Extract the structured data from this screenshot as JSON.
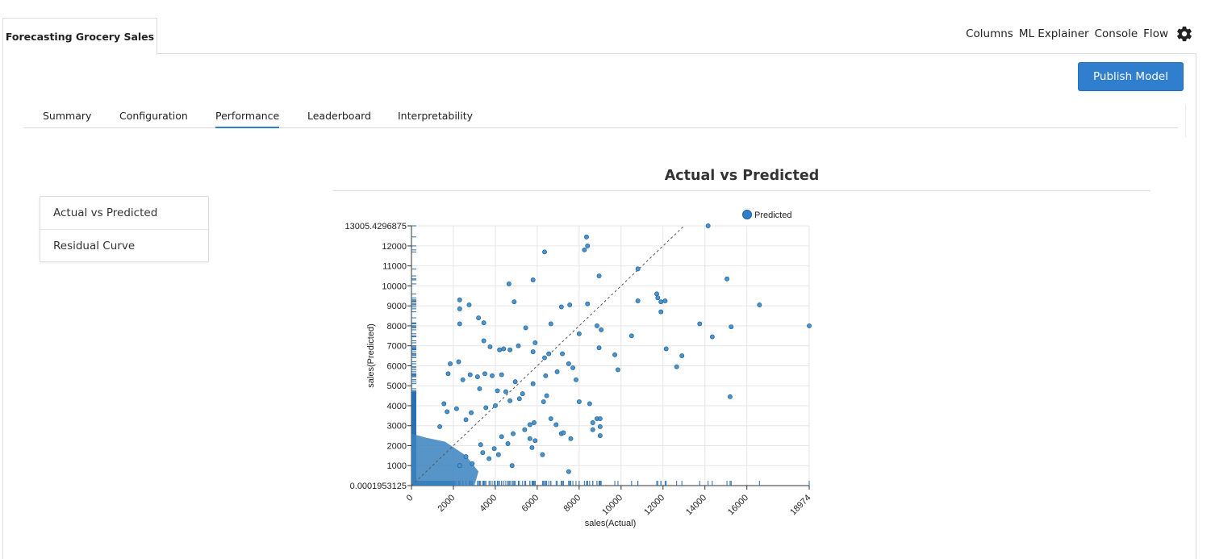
{
  "app": {
    "project_tab": "Forecasting Grocery Sales",
    "top_links": [
      "Columns",
      "ML Explainer",
      "Console",
      "Flow"
    ],
    "settings_icon": "gear-icon",
    "publish_label": "Publish Model",
    "accent_color": "#2f7fce"
  },
  "subtabs": [
    {
      "label": "Summary",
      "active": false
    },
    {
      "label": "Configuration",
      "active": false
    },
    {
      "label": "Performance",
      "active": true
    },
    {
      "label": "Leaderboard",
      "active": false
    },
    {
      "label": "Interpretability",
      "active": false
    }
  ],
  "side_menu": [
    "Actual vs Predicted",
    "Residual Curve"
  ],
  "chart_data": {
    "type": "scatter",
    "title": "Actual vs Predicted",
    "xlabel": "sales(Actual)",
    "ylabel": "sales(Predicted)",
    "xlim": [
      0,
      18974
    ],
    "ylim": [
      0.0001953125,
      13005.4296875
    ],
    "x_ticks": [
      "0",
      "2000",
      "4000",
      "6000",
      "8000",
      "10000",
      "12000",
      "14000",
      "16000",
      "18974"
    ],
    "y_ticks": [
      "0.0001953125",
      "1000",
      "2000",
      "3000",
      "4000",
      "5000",
      "6000",
      "7000",
      "8000",
      "9000",
      "10000",
      "11000",
      "12000",
      "13005.4296875"
    ],
    "legend": {
      "label": "Predicted",
      "position": "top-right"
    },
    "point_color": "#4a95cc",
    "point_stroke": "#1f5f99",
    "rug_color": "#2a6fae",
    "diagonal": "dashed y = x reference line",
    "series": [
      {
        "name": "Predicted",
        "points": [
          [
            14150,
            13005
          ],
          [
            8350,
            12450
          ],
          [
            8400,
            12000
          ],
          [
            8250,
            11800
          ],
          [
            6350,
            11700
          ],
          [
            10800,
            10850
          ],
          [
            8950,
            10500
          ],
          [
            15050,
            10350
          ],
          [
            5800,
            10300
          ],
          [
            4650,
            10100
          ],
          [
            11700,
            9600
          ],
          [
            11750,
            9400
          ],
          [
            10800,
            9250
          ],
          [
            11900,
            9200
          ],
          [
            12100,
            9250
          ],
          [
            2300,
            9300
          ],
          [
            2300,
            8850
          ],
          [
            2750,
            9050
          ],
          [
            4900,
            9200
          ],
          [
            7550,
            9050
          ],
          [
            8400,
            9100
          ],
          [
            7150,
            8950
          ],
          [
            16600,
            9050
          ],
          [
            11900,
            8700
          ],
          [
            2300,
            8100
          ],
          [
            3200,
            8400
          ],
          [
            3450,
            8150
          ],
          [
            13750,
            8100
          ],
          [
            18974,
            8000
          ],
          [
            15250,
            7950
          ],
          [
            6650,
            8100
          ],
          [
            8850,
            8000
          ],
          [
            9050,
            7800
          ],
          [
            8000,
            7600
          ],
          [
            8950,
            6900
          ],
          [
            14350,
            7450
          ],
          [
            10500,
            7500
          ],
          [
            12150,
            6850
          ],
          [
            9700,
            6550
          ],
          [
            9850,
            5800
          ],
          [
            7850,
            5300
          ],
          [
            8000,
            4200
          ],
          [
            12900,
            6500
          ],
          [
            12650,
            5950
          ],
          [
            15200,
            4450
          ],
          [
            8500,
            4100
          ],
          [
            8850,
            3350
          ],
          [
            9000,
            3350
          ],
          [
            8650,
            3150
          ],
          [
            9000,
            2950
          ],
          [
            9000,
            2500
          ],
          [
            8650,
            2800
          ],
          [
            7500,
            700
          ],
          [
            6250,
            1550
          ],
          [
            5750,
            1900
          ],
          [
            7150,
            2600
          ],
          [
            7600,
            2350
          ],
          [
            1750,
            5600
          ],
          [
            1850,
            6100
          ],
          [
            2250,
            6200
          ],
          [
            3450,
            7250
          ],
          [
            3750,
            6950
          ],
          [
            4200,
            6800
          ],
          [
            4400,
            6850
          ],
          [
            4700,
            6800
          ],
          [
            5100,
            7000
          ],
          [
            5450,
            7900
          ],
          [
            5800,
            6700
          ],
          [
            5900,
            7150
          ],
          [
            6350,
            6400
          ],
          [
            6550,
            6600
          ],
          [
            7200,
            6600
          ],
          [
            7500,
            6100
          ],
          [
            7700,
            5900
          ],
          [
            6950,
            5700
          ],
          [
            6400,
            5500
          ],
          [
            5800,
            5100
          ],
          [
            4950,
            5200
          ],
          [
            4300,
            5550
          ],
          [
            3850,
            5500
          ],
          [
            3500,
            5600
          ],
          [
            2450,
            5300
          ],
          [
            2800,
            5550
          ],
          [
            3150,
            5450
          ],
          [
            3250,
            4850
          ],
          [
            4100,
            4750
          ],
          [
            4500,
            4700
          ],
          [
            5300,
            4600
          ],
          [
            5150,
            4350
          ],
          [
            4700,
            4250
          ],
          [
            4000,
            4000
          ],
          [
            3550,
            3900
          ],
          [
            2850,
            3650
          ],
          [
            2600,
            3300
          ],
          [
            6650,
            3350
          ],
          [
            6900,
            3050
          ],
          [
            7250,
            2650
          ],
          [
            6450,
            4500
          ],
          [
            6300,
            4200
          ],
          [
            5850,
            3150
          ],
          [
            5650,
            3050
          ],
          [
            5400,
            2800
          ],
          [
            4850,
            2600
          ],
          [
            4300,
            2450
          ],
          [
            5650,
            2350
          ],
          [
            5900,
            2250
          ],
          [
            4600,
            2100
          ],
          [
            3950,
            1850
          ],
          [
            3700,
            1350
          ],
          [
            3400,
            1650
          ],
          [
            2900,
            1100
          ],
          [
            2600,
            1450
          ],
          [
            2300,
            1000
          ],
          [
            4800,
            1000
          ],
          [
            4150,
            1550
          ],
          [
            3300,
            2050
          ],
          [
            2150,
            3850
          ],
          [
            1700,
            3700
          ],
          [
            1550,
            4100
          ],
          [
            1350,
            2950
          ]
        ]
      }
    ]
  }
}
